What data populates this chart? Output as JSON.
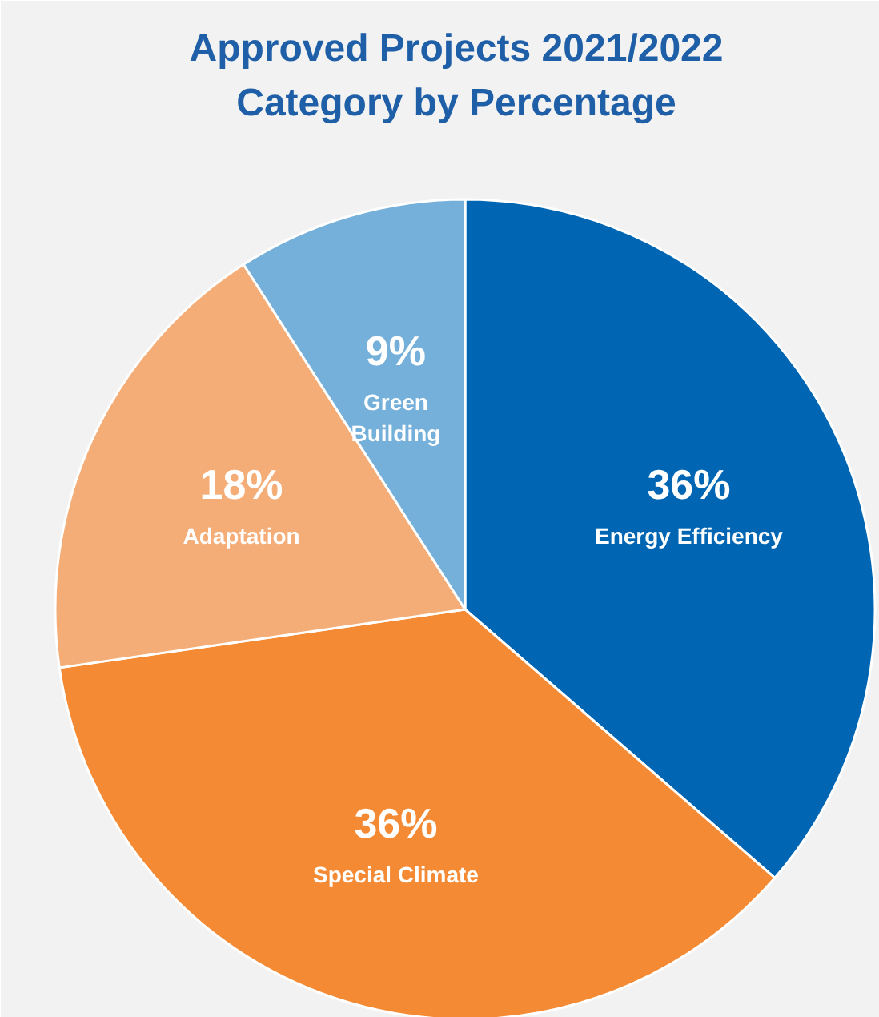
{
  "chart_data": {
    "type": "pie",
    "title": "Approved Projects 2021/2022\nCategory by Percentage",
    "categories": [
      "Energy Efficiency",
      "Special Climate",
      "Adaptation",
      "Green Building"
    ],
    "values": [
      36,
      36,
      18,
      9
    ],
    "colors": [
      "#0066b3",
      "#f58a34",
      "#f5ad78",
      "#74b0d9"
    ],
    "value_labels": [
      "36%",
      "36%",
      "18%",
      "9%"
    ]
  }
}
